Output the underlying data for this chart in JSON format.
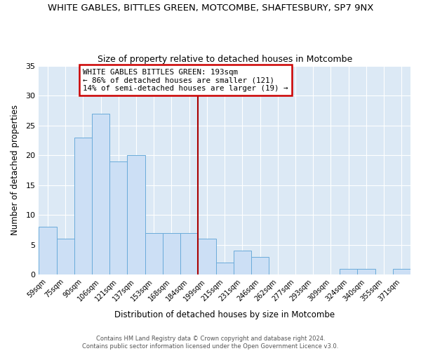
{
  "title": "WHITE GABLES, BITTLES GREEN, MOTCOMBE, SHAFTESBURY, SP7 9NX",
  "subtitle": "Size of property relative to detached houses in Motcombe",
  "xlabel": "Distribution of detached houses by size in Motcombe",
  "ylabel": "Number of detached properties",
  "bin_labels": [
    "59sqm",
    "75sqm",
    "90sqm",
    "106sqm",
    "121sqm",
    "137sqm",
    "153sqm",
    "168sqm",
    "184sqm",
    "199sqm",
    "215sqm",
    "231sqm",
    "246sqm",
    "262sqm",
    "277sqm",
    "293sqm",
    "309sqm",
    "324sqm",
    "340sqm",
    "355sqm",
    "371sqm"
  ],
  "bin_values": [
    8,
    6,
    23,
    27,
    19,
    20,
    7,
    7,
    7,
    6,
    2,
    4,
    3,
    0,
    0,
    0,
    0,
    1,
    1,
    0,
    1
  ],
  "bar_color": "#ccdff5",
  "bar_edge_color": "#6aabda",
  "fig_bg_color": "#ffffff",
  "ax_bg_color": "#dce9f5",
  "grid_color": "#ffffff",
  "vline_color": "#aa0000",
  "vline_x_idx": 8.5,
  "annotation_text": "WHITE GABLES BITTLES GREEN: 193sqm\n← 86% of detached houses are smaller (121)\n14% of semi-detached houses are larger (19) →",
  "annotation_box_edge": "#cc0000",
  "annotation_box_face": "#ffffff",
  "ylim": [
    0,
    35
  ],
  "yticks": [
    0,
    5,
    10,
    15,
    20,
    25,
    30,
    35
  ],
  "footer_line1": "Contains HM Land Registry data © Crown copyright and database right 2024.",
  "footer_line2": "Contains public sector information licensed under the Open Government Licence v3.0."
}
